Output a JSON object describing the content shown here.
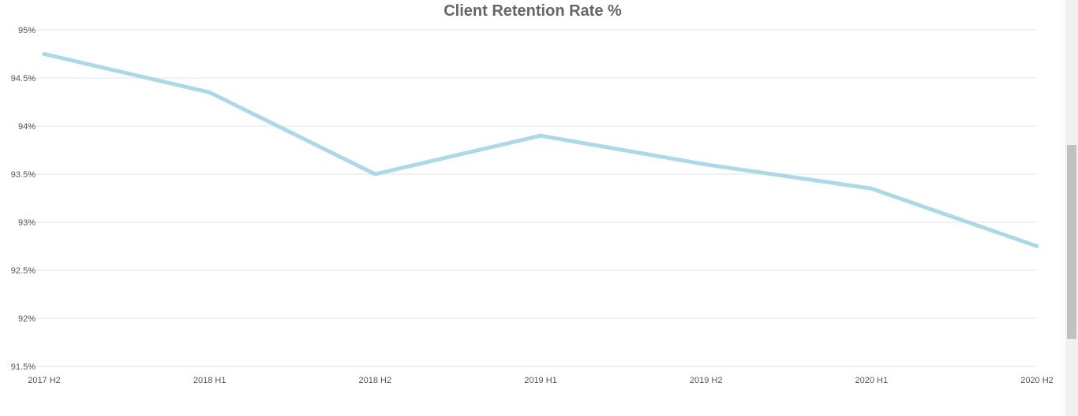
{
  "chart_data": {
    "type": "line",
    "title": "Client Retention Rate %",
    "xlabel": "",
    "ylabel": "",
    "categories": [
      "2017 H2",
      "2018 H1",
      "2018 H2",
      "2019 H1",
      "2019 H2",
      "2020 H1",
      "2020 H2"
    ],
    "series": [
      {
        "values": [
          94.75,
          94.35,
          93.5,
          93.9,
          93.6,
          93.35,
          92.75
        ],
        "color": "#add8e6"
      }
    ],
    "ylim": [
      91.5,
      95
    ],
    "yticks": [
      "91.5%",
      "92%",
      "92.5%",
      "93%",
      "93.5%",
      "94%",
      "94.5%",
      "95%"
    ],
    "grid": true,
    "legend": "none"
  }
}
